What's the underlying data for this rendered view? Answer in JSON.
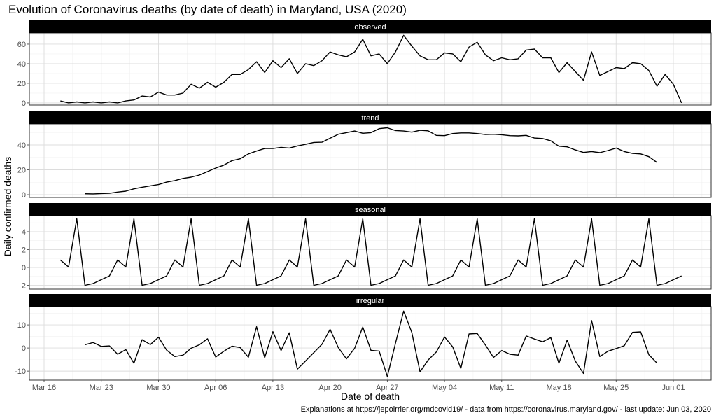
{
  "chart_data": {
    "type": "line",
    "title": "Evolution of Coronavirus deaths (by date of death) in Maryland, USA (2020)",
    "xlabel": "Date of death",
    "ylabel": "Daily confirmed deaths",
    "caption": "Explanations at https://jepoirrier.org/mdcovid19/ - data from https://coronavirus.maryland.gov/ - last update: Jun 03, 2020",
    "x_start_date": "2020-03-18",
    "x_ticks": [
      "Mar 16",
      "Mar 23",
      "Mar 30",
      "Apr 06",
      "Apr 13",
      "Apr 20",
      "Apr 27",
      "May 04",
      "May 11",
      "May 18",
      "May 25",
      "Jun 01"
    ],
    "grid": true,
    "line_color": "#000000",
    "strip_color": "#000000",
    "panels": [
      {
        "name": "observed",
        "start_index": 0,
        "ylim": [
          -2.2,
          71.4
        ],
        "y_ticks": [
          0,
          20,
          40,
          60
        ],
        "values": [
          2,
          0,
          1,
          0,
          1,
          0,
          1,
          0,
          2,
          3,
          7,
          6,
          11,
          8,
          8,
          10,
          19,
          15,
          21,
          16,
          21,
          29,
          29,
          34,
          42,
          31,
          43,
          36,
          45,
          30,
          40,
          38,
          43,
          52,
          49,
          47,
          52,
          65,
          48,
          50,
          40,
          52,
          69,
          58,
          48,
          44,
          44,
          51,
          50,
          42,
          57,
          62,
          49,
          43,
          46,
          44,
          45,
          54,
          55,
          46,
          46,
          31,
          41,
          32,
          23,
          52,
          28,
          32,
          36,
          35,
          41,
          40,
          33,
          17,
          29,
          19,
          0
        ]
      },
      {
        "name": "trend",
        "start_index": 3,
        "ylim": [
          -2.25,
          56.9
        ],
        "y_ticks": [
          0,
          20,
          40
        ],
        "values": [
          0.75,
          0.6,
          0.9,
          1.1,
          2.1,
          2.8,
          4.7,
          6.0,
          7.1,
          8.1,
          10.1,
          11.3,
          13.1,
          14.1,
          15.8,
          18.6,
          21.4,
          23.8,
          27.4,
          28.9,
          32.8,
          35.1,
          37.1,
          37.1,
          38.1,
          37.5,
          39.2,
          40.5,
          42.0,
          42.2,
          45.4,
          48.6,
          49.9,
          51.2,
          49.4,
          49.9,
          53.1,
          53.8,
          51.6,
          51.2,
          50.3,
          51.8,
          51.4,
          47.7,
          47.5,
          49.2,
          49.7,
          49.7,
          49.2,
          48.4,
          48.6,
          48.2,
          47.5,
          47.3,
          47.7,
          45.6,
          45.2,
          43.3,
          39.0,
          38.5,
          36.0,
          34.0,
          34.7,
          33.8,
          35.5,
          37.5,
          34.7,
          33.2,
          32.8,
          30.6,
          25.9
        ]
      },
      {
        "name": "seasonal",
        "start_index": 0,
        "ylim": [
          -2.43,
          5.8
        ],
        "y_ticks": [
          -2,
          0,
          2,
          4
        ],
        "period_pattern": [
          0.84,
          0.05,
          5.45,
          -2.0,
          -1.8,
          -1.37,
          -0.95
        ],
        "length": 77
      },
      {
        "name": "irregular",
        "start_index": 3,
        "ylim": [
          -13.9,
          17.9
        ],
        "y_ticks": [
          -10,
          0,
          10
        ],
        "values": [
          1.4,
          2.4,
          0.7,
          0.9,
          -2.7,
          -0.7,
          -6.6,
          3.6,
          1.5,
          4.7,
          -0.9,
          -3.7,
          -3.1,
          -0.1,
          1.4,
          4.0,
          -3.9,
          -1.4,
          0.8,
          0.2,
          -4.0,
          9.2,
          -4.2,
          7.1,
          -1.1,
          6.6,
          -9.1,
          -5.6,
          -2.0,
          1.6,
          8.1,
          0.2,
          -4.7,
          -0.1,
          9.1,
          -1.0,
          -1.3,
          -12.3,
          2.0,
          16.0,
          6.7,
          -10.3,
          -5.2,
          -1.7,
          4.8,
          0.5,
          -8.8,
          6.1,
          6.3,
          1.3,
          -4.1,
          -1.1,
          -2.7,
          -3.1,
          5.2,
          3.9,
          2.7,
          4.5,
          -6.6,
          3.4,
          -5.6,
          -11.0,
          11.9,
          -3.7,
          -1.4,
          -0.2,
          1.0,
          6.8,
          7.0,
          -2.9,
          -6.5
        ]
      }
    ]
  }
}
